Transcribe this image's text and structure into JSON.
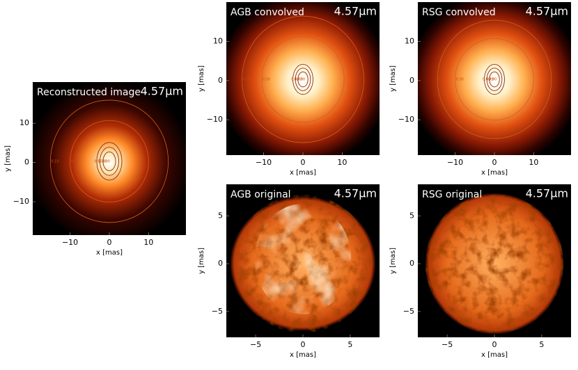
{
  "chart_data": [
    {
      "type": "image",
      "title": "Reconstructed image",
      "wavelength": "4.57μm",
      "xlabel": "x [mas]",
      "ylabel": "y [mas]",
      "xlim": [
        -19.5,
        19.5
      ],
      "ylim": [
        -18.5,
        20.5
      ],
      "xticks": [
        {
          "value": -10,
          "label": "−10"
        },
        0,
        10
      ],
      "yticks": [
        {
          "value": -10,
          "label": "−10"
        },
        0,
        10
      ],
      "contour_levels": [
        {
          "value": 0.1,
          "label": "0.10"
        },
        {
          "value": 0.3,
          "label": "0.30"
        },
        {
          "value": 0.5,
          "label": "0.50"
        },
        {
          "value": 0.7,
          "label": "0.70"
        },
        {
          "value": 0.9,
          "label": "0.90"
        }
      ]
    },
    {
      "type": "image",
      "title": "AGB convolved",
      "wavelength": "4.57μm",
      "xlabel": "x [mas]",
      "ylabel": "y [mas]",
      "xlim": [
        -19.5,
        19.5
      ],
      "ylim": [
        -19,
        20
      ],
      "xticks": [
        {
          "value": -10,
          "label": "−10"
        },
        0,
        10
      ],
      "yticks": [
        {
          "value": -10,
          "label": "−10"
        },
        0,
        10
      ],
      "contour_levels": [
        {
          "value": 0.1,
          "label": "0.10"
        },
        {
          "value": 0.3,
          "label": "0.30"
        },
        {
          "value": 0.5,
          "label": "0.50"
        },
        {
          "value": 0.7,
          "label": "0.70"
        },
        {
          "value": 0.9,
          "label": "0.90"
        }
      ]
    },
    {
      "type": "image",
      "title": "RSG convolved",
      "wavelength": "4.57μm",
      "xlabel": "x [mas]",
      "ylabel": "y [mas]",
      "xlim": [
        -19.5,
        19.5
      ],
      "ylim": [
        -19,
        20
      ],
      "xticks": [
        {
          "value": -10,
          "label": "−10"
        },
        0,
        10
      ],
      "yticks": [
        {
          "value": -10,
          "label": "−10"
        },
        0,
        10
      ],
      "contour_levels": [
        {
          "value": 0.1,
          "label": "0.10"
        },
        {
          "value": 0.3,
          "label": "0.30"
        },
        {
          "value": 0.5,
          "label": "0.50"
        },
        {
          "value": 0.7,
          "label": "0.70"
        },
        {
          "value": 0.9,
          "label": "0.90"
        }
      ]
    },
    {
      "type": "image",
      "title": "AGB original",
      "wavelength": "4.57μm",
      "xlabel": "x [mas]",
      "ylabel": "y [mas]",
      "xlim": [
        -8.1,
        8.1
      ],
      "ylim": [
        -7.7,
        8.3
      ],
      "xticks": [
        {
          "value": -5,
          "label": "−5"
        },
        0,
        5
      ],
      "yticks": [
        {
          "value": -5,
          "label": "−5"
        },
        0,
        5
      ]
    },
    {
      "type": "image",
      "title": "RSG original",
      "wavelength": "4.57μm",
      "xlabel": "x [mas]",
      "ylabel": "y [mas]",
      "xlim": [
        -8.1,
        8.1
      ],
      "ylim": [
        -7.7,
        8.3
      ],
      "xticks": [
        {
          "value": -5,
          "label": "−5"
        },
        0,
        5
      ],
      "yticks": [
        {
          "value": -5,
          "label": "−5"
        },
        0,
        5
      ]
    }
  ]
}
